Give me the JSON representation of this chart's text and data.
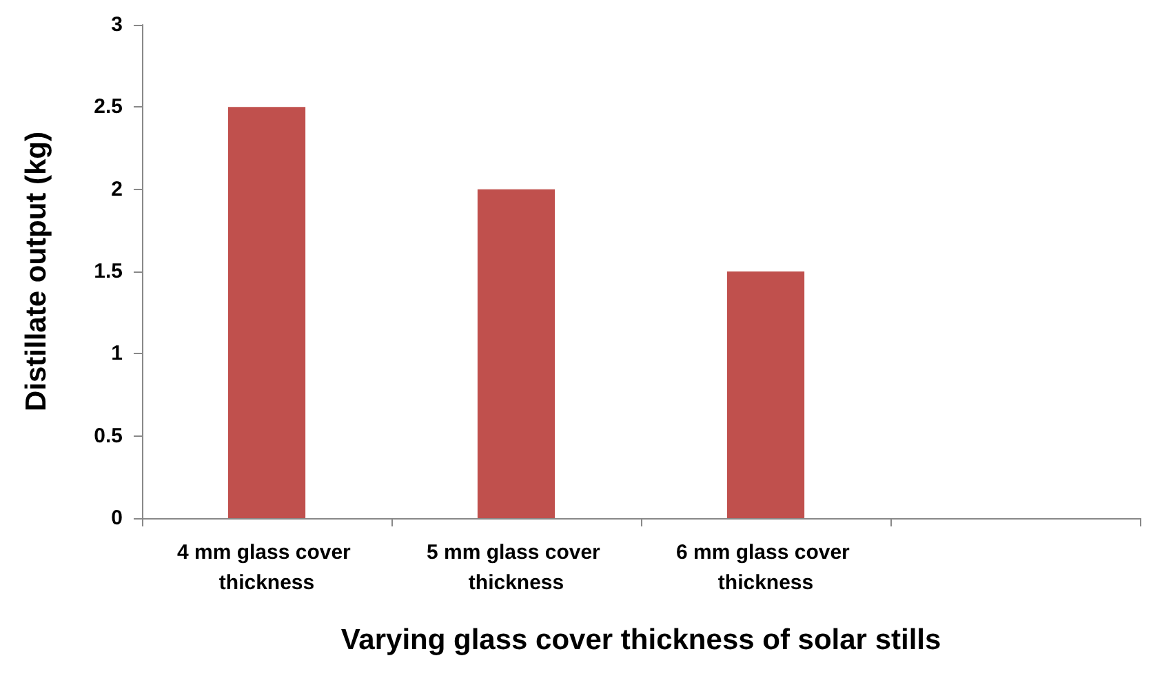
{
  "chart_data": {
    "type": "bar",
    "xlabel": "Varying glass cover thickness of solar stills",
    "ylabel": "Distillate output (kg)",
    "categories": [
      "4 mm glass cover thickness",
      "5 mm glass cover thickness",
      "6 mm glass cover thickness",
      null
    ],
    "values": [
      2.5,
      2,
      1.5,
      null
    ],
    "color": "#c0504d",
    "ylim": [
      0,
      3
    ],
    "yticks": [
      0,
      0.5,
      1,
      1.5,
      2,
      2.5,
      3
    ],
    "grid": false
  }
}
